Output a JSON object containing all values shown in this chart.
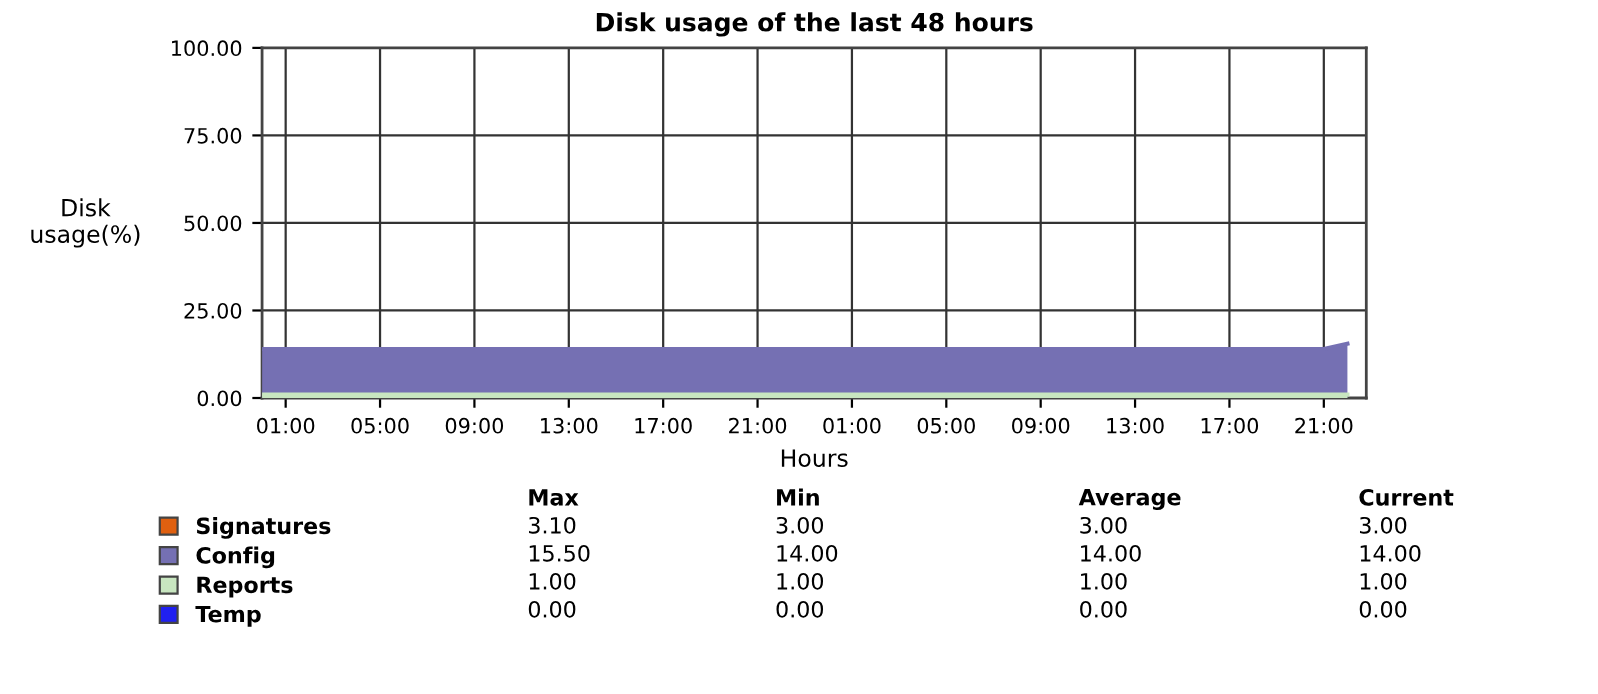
{
  "chart_data": {
    "type": "area",
    "title": "Disk usage of the last 48 hours",
    "xlabel": "Hours",
    "ylabel": "Disk\nusage(%)",
    "categories": [
      null,
      "01:00",
      null,
      null,
      null,
      "05:00",
      null,
      null,
      null,
      "09:00",
      null,
      null,
      null,
      "13:00",
      null,
      null,
      null,
      "17:00",
      null,
      null,
      null,
      "21:00",
      null,
      null,
      null,
      "01:00",
      null,
      null,
      null,
      "05:00",
      null,
      null,
      null,
      "09:00",
      null,
      null,
      null,
      "13:00",
      null,
      null,
      null,
      "17:00",
      null,
      null,
      null,
      "21:00",
      null
    ],
    "ylim": [
      0,
      100
    ],
    "yticks": [
      {
        "value": 0,
        "label": "0.00"
      },
      {
        "value": 25,
        "label": "25.00"
      },
      {
        "value": 50,
        "label": "50.00"
      },
      {
        "value": 75,
        "label": "75.00"
      },
      {
        "value": 100,
        "label": "100.00"
      }
    ],
    "grid": true,
    "legend": "bottom",
    "series": [
      {
        "name": "Signatures",
        "color": "#e06010",
        "values": [
          null,
          null,
          null,
          null,
          null,
          null,
          null,
          null,
          null,
          null,
          null,
          null,
          null,
          null,
          null,
          null,
          null,
          null,
          null,
          null,
          null,
          null,
          null,
          null,
          null,
          null,
          null,
          null,
          null,
          null,
          null,
          null,
          null,
          null,
          null,
          null,
          null,
          null,
          null,
          null,
          null,
          null,
          null,
          null,
          null,
          null,
          null
        ]
      },
      {
        "name": "Config",
        "color": "#7570b3",
        "values": [
          14,
          14,
          14,
          14,
          14,
          14,
          14,
          14,
          14,
          14,
          14,
          14,
          14,
          14,
          14,
          14,
          14,
          14,
          14,
          14,
          14,
          14,
          14,
          14,
          14,
          14,
          14,
          14,
          14,
          14,
          14,
          14,
          14,
          14,
          14,
          14,
          14,
          14,
          14,
          14,
          14,
          14,
          14,
          14,
          14,
          14,
          15.5
        ]
      },
      {
        "name": "Reports",
        "color": "#c8e6c0",
        "values": [
          1,
          1,
          1,
          1,
          1,
          1,
          1,
          1,
          1,
          1,
          1,
          1,
          1,
          1,
          1,
          1,
          1,
          1,
          1,
          1,
          1,
          1,
          1,
          1,
          1,
          1,
          1,
          1,
          1,
          1,
          1,
          1,
          1,
          1,
          1,
          1,
          1,
          1,
          1,
          1,
          1,
          1,
          1,
          1,
          1,
          1,
          1
        ]
      },
      {
        "name": "Temp",
        "color": "#2020f0",
        "values": [
          null,
          null,
          null,
          null,
          null,
          null,
          null,
          null,
          null,
          null,
          null,
          null,
          null,
          null,
          null,
          null,
          null,
          null,
          null,
          null,
          null,
          null,
          null,
          null,
          null,
          null,
          null,
          null,
          null,
          null,
          null,
          null,
          null,
          null,
          null,
          null,
          null,
          null,
          null,
          null,
          null,
          null,
          null,
          null,
          null,
          null,
          null
        ]
      }
    ],
    "annotations": [
      "Max",
      "Min",
      "Average",
      "Current",
      "3.10",
      "3.00",
      "3.00",
      "3.00",
      "15.50",
      "14.00",
      "14.00",
      "14.00",
      "1.00",
      "1.00",
      "1.00",
      "1.00",
      "0.00",
      "0.00",
      "0.00",
      "0.00"
    ]
  }
}
